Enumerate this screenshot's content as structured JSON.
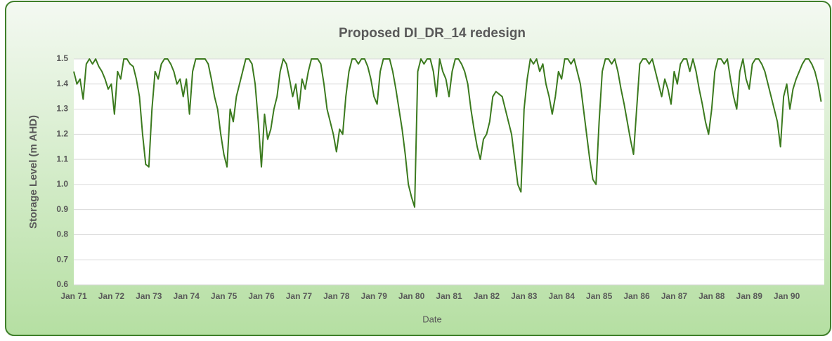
{
  "chart_data": {
    "type": "line",
    "title": "Proposed DI_DR_14 redesign",
    "x_label": "Date",
    "y_label": "Storage Level (m AHD)",
    "categories": [
      "Jan 71",
      null,
      null,
      null,
      null,
      null,
      null,
      null,
      null,
      null,
      null,
      null,
      "Jan 72",
      null,
      null,
      null,
      null,
      null,
      null,
      null,
      null,
      null,
      null,
      null,
      "Jan 73",
      null,
      null,
      null,
      null,
      null,
      null,
      null,
      null,
      null,
      null,
      null,
      "Jan 74",
      null,
      null,
      null,
      null,
      null,
      null,
      null,
      null,
      null,
      null,
      null,
      "Jan 75",
      null,
      null,
      null,
      null,
      null,
      null,
      null,
      null,
      null,
      null,
      null,
      "Jan 76",
      null,
      null,
      null,
      null,
      null,
      null,
      null,
      null,
      null,
      null,
      null,
      "Jan 77",
      null,
      null,
      null,
      null,
      null,
      null,
      null,
      null,
      null,
      null,
      null,
      "Jan 78",
      null,
      null,
      null,
      null,
      null,
      null,
      null,
      null,
      null,
      null,
      null,
      "Jan 79",
      null,
      null,
      null,
      null,
      null,
      null,
      null,
      null,
      null,
      null,
      null,
      "Jan 80",
      null,
      null,
      null,
      null,
      null,
      null,
      null,
      null,
      null,
      null,
      null,
      "Jan 81",
      null,
      null,
      null,
      null,
      null,
      null,
      null,
      null,
      null,
      null,
      null,
      "Jan 82",
      null,
      null,
      null,
      null,
      null,
      null,
      null,
      null,
      null,
      null,
      null,
      "Jan 83",
      null,
      null,
      null,
      null,
      null,
      null,
      null,
      null,
      null,
      null,
      null,
      "Jan 84",
      null,
      null,
      null,
      null,
      null,
      null,
      null,
      null,
      null,
      null,
      null,
      "Jan 85",
      null,
      null,
      null,
      null,
      null,
      null,
      null,
      null,
      null,
      null,
      null,
      "Jan 86",
      null,
      null,
      null,
      null,
      null,
      null,
      null,
      null,
      null,
      null,
      null,
      "Jan 87",
      null,
      null,
      null,
      null,
      null,
      null,
      null,
      null,
      null,
      null,
      null,
      "Jan 88",
      null,
      null,
      null,
      null,
      null,
      null,
      null,
      null,
      null,
      null,
      null,
      "Jan 89",
      null,
      null,
      null,
      null,
      null,
      null,
      null,
      null,
      null,
      null,
      null,
      "Jan 90",
      null,
      null,
      null,
      null,
      null,
      null,
      null,
      null,
      null,
      null,
      null
    ],
    "values": [
      1.45,
      1.4,
      1.42,
      1.34,
      1.48,
      1.5,
      1.48,
      1.5,
      1.47,
      1.45,
      1.42,
      1.38,
      1.4,
      1.28,
      1.45,
      1.42,
      1.5,
      1.5,
      1.48,
      1.47,
      1.42,
      1.35,
      1.2,
      1.08,
      1.07,
      1.3,
      1.45,
      1.42,
      1.48,
      1.5,
      1.5,
      1.48,
      1.45,
      1.4,
      1.42,
      1.35,
      1.42,
      1.28,
      1.45,
      1.5,
      1.5,
      1.5,
      1.5,
      1.48,
      1.42,
      1.35,
      1.3,
      1.2,
      1.12,
      1.07,
      1.3,
      1.25,
      1.35,
      1.4,
      1.45,
      1.5,
      1.5,
      1.48,
      1.4,
      1.25,
      1.07,
      1.28,
      1.18,
      1.22,
      1.3,
      1.35,
      1.45,
      1.5,
      1.48,
      1.42,
      1.35,
      1.4,
      1.3,
      1.42,
      1.38,
      1.45,
      1.5,
      1.5,
      1.5,
      1.48,
      1.4,
      1.3,
      1.25,
      1.2,
      1.13,
      1.22,
      1.2,
      1.35,
      1.45,
      1.5,
      1.5,
      1.48,
      1.5,
      1.5,
      1.47,
      1.42,
      1.35,
      1.32,
      1.45,
      1.5,
      1.5,
      1.5,
      1.45,
      1.38,
      1.3,
      1.22,
      1.12,
      1.0,
      0.95,
      0.91,
      1.45,
      1.5,
      1.48,
      1.5,
      1.5,
      1.45,
      1.35,
      1.5,
      1.45,
      1.42,
      1.35,
      1.45,
      1.5,
      1.5,
      1.48,
      1.45,
      1.4,
      1.3,
      1.22,
      1.15,
      1.1,
      1.18,
      1.2,
      1.25,
      1.35,
      1.37,
      1.36,
      1.35,
      1.3,
      1.25,
      1.2,
      1.1,
      1.0,
      0.97,
      1.3,
      1.42,
      1.5,
      1.48,
      1.5,
      1.45,
      1.48,
      1.4,
      1.35,
      1.28,
      1.35,
      1.45,
      1.42,
      1.5,
      1.5,
      1.48,
      1.5,
      1.45,
      1.4,
      1.3,
      1.2,
      1.1,
      1.02,
      1.0,
      1.25,
      1.45,
      1.5,
      1.5,
      1.48,
      1.5,
      1.45,
      1.38,
      1.32,
      1.25,
      1.18,
      1.12,
      1.3,
      1.48,
      1.5,
      1.5,
      1.48,
      1.5,
      1.45,
      1.4,
      1.35,
      1.42,
      1.38,
      1.32,
      1.45,
      1.4,
      1.48,
      1.5,
      1.5,
      1.45,
      1.5,
      1.45,
      1.38,
      1.32,
      1.25,
      1.2,
      1.3,
      1.45,
      1.5,
      1.5,
      1.48,
      1.5,
      1.42,
      1.35,
      1.3,
      1.45,
      1.5,
      1.42,
      1.38,
      1.48,
      1.5,
      1.5,
      1.48,
      1.45,
      1.4,
      1.35,
      1.3,
      1.25,
      1.15,
      1.35,
      1.4,
      1.3,
      1.38,
      1.42,
      1.45,
      1.48,
      1.5,
      1.5,
      1.48,
      1.45,
      1.4,
      1.33
    ],
    "color": "#3b7a1e",
    "ylim": [
      0.6,
      1.5
    ],
    "yticks": [
      0.6,
      0.7,
      0.8,
      0.9,
      {
        "value": 1,
        "label": "1.0"
      },
      1.1,
      1.2,
      1.3,
      1.4,
      1.5
    ],
    "grid": true
  }
}
